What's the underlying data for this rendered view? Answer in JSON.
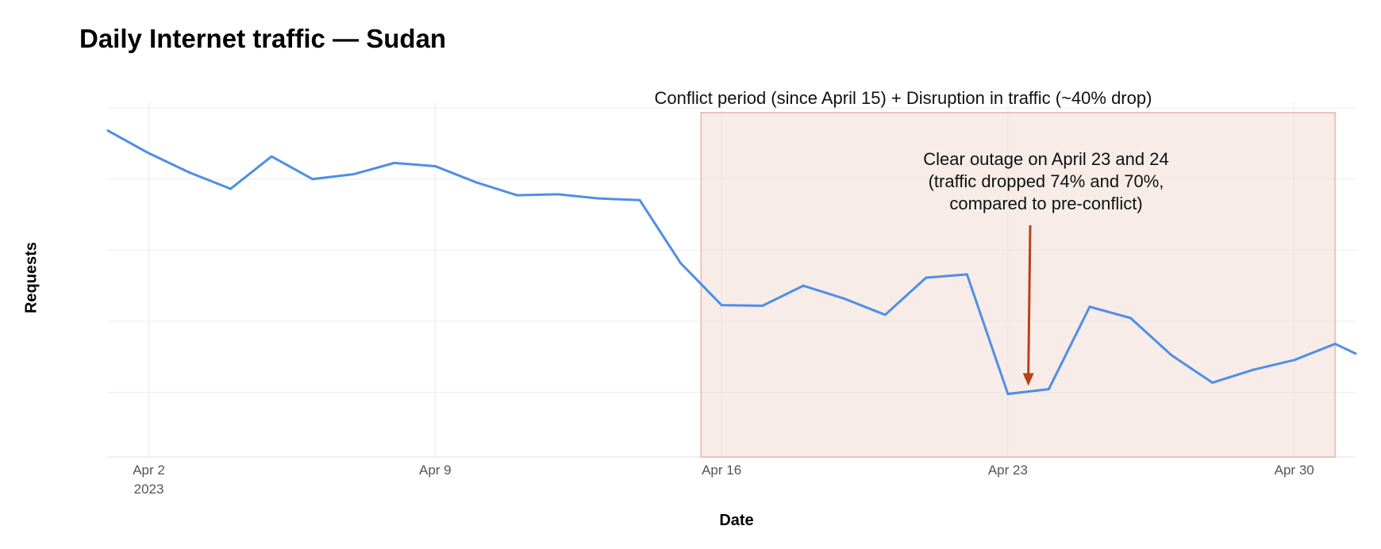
{
  "chart_data": {
    "type": "line",
    "title": "Daily Internet traffic — Sudan",
    "xlabel": "Date",
    "ylabel": "Requests",
    "y_tick_labels_shown": false,
    "x_ticks": [
      {
        "date": "2023-04-02",
        "label": "Apr 2",
        "sublabel": "2023"
      },
      {
        "date": "2023-04-09",
        "label": "Apr 9",
        "sublabel": ""
      },
      {
        "date": "2023-04-16",
        "label": "Apr 16",
        "sublabel": ""
      },
      {
        "date": "2023-04-23",
        "label": "Apr 23",
        "sublabel": ""
      },
      {
        "date": "2023-04-30",
        "label": "Apr 30",
        "sublabel": ""
      }
    ],
    "ylim": [
      0,
      110
    ],
    "series": [
      {
        "color": "#4f8fe6",
        "points": [
          {
            "x": "2023-04-01",
            "y": 101
          },
          {
            "x": "2023-04-02",
            "y": 94
          },
          {
            "x": "2023-04-03",
            "y": 88
          },
          {
            "x": "2023-04-04",
            "y": 83
          },
          {
            "x": "2023-04-05",
            "y": 93
          },
          {
            "x": "2023-04-06",
            "y": 86
          },
          {
            "x": "2023-04-07",
            "y": 87.5
          },
          {
            "x": "2023-04-08",
            "y": 91
          },
          {
            "x": "2023-04-09",
            "y": 90
          },
          {
            "x": "2023-04-10",
            "y": 85
          },
          {
            "x": "2023-04-11",
            "y": 81
          },
          {
            "x": "2023-04-12",
            "y": 81.3
          },
          {
            "x": "2023-04-13",
            "y": 80
          },
          {
            "x": "2023-04-14",
            "y": 79.5
          },
          {
            "x": "2023-04-15",
            "y": 60
          },
          {
            "x": "2023-04-16",
            "y": 47
          },
          {
            "x": "2023-04-17",
            "y": 46.8
          },
          {
            "x": "2023-04-18",
            "y": 53
          },
          {
            "x": "2023-04-19",
            "y": 49
          },
          {
            "x": "2023-04-20",
            "y": 44
          },
          {
            "x": "2023-04-21",
            "y": 55.5
          },
          {
            "x": "2023-04-22",
            "y": 56.5
          },
          {
            "x": "2023-04-23",
            "y": 19.5
          },
          {
            "x": "2023-04-24",
            "y": 21
          },
          {
            "x": "2023-04-25",
            "y": 46.5
          },
          {
            "x": "2023-04-26",
            "y": 43
          },
          {
            "x": "2023-04-27",
            "y": 31.5
          },
          {
            "x": "2023-04-28",
            "y": 23
          },
          {
            "x": "2023-04-29",
            "y": 27
          },
          {
            "x": "2023-04-30",
            "y": 30
          },
          {
            "x": "2023-05-01",
            "y": 35
          },
          {
            "x": "2023-05-01T12:00",
            "y": 32
          }
        ]
      }
    ],
    "shaded_region": {
      "from": "2023-04-15T12:00",
      "to": "2023-05-01",
      "color": "#f1ddd6",
      "label": "Conflict period (since April 15) + Disruption in traffic (~40% drop)"
    },
    "annotation": {
      "lines": [
        "Clear outage on April 23 and 24",
        "(traffic dropped 74% and 70%,",
        "compared to pre-conflict)"
      ],
      "arrow_to": {
        "x": "2023-04-23T12:00",
        "y": 22
      },
      "arrow_color": "#b5431a"
    },
    "grid": true,
    "legend": "none"
  }
}
